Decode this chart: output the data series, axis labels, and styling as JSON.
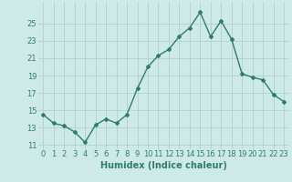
{
  "x": [
    0,
    1,
    2,
    3,
    4,
    5,
    6,
    7,
    8,
    9,
    10,
    11,
    12,
    13,
    14,
    15,
    16,
    17,
    18,
    19,
    20,
    21,
    22,
    23
  ],
  "y": [
    14.5,
    13.5,
    13.2,
    12.5,
    11.3,
    13.3,
    14.0,
    13.5,
    14.5,
    17.5,
    20.0,
    21.3,
    22.0,
    23.5,
    24.5,
    26.3,
    23.5,
    25.3,
    23.2,
    19.2,
    18.8,
    18.5,
    16.8,
    16.0
  ],
  "line_color": "#2e7d6e",
  "marker": "D",
  "marker_size": 2.0,
  "bg_color": "#ceeae8",
  "grid_color": "#b0cfcd",
  "tick_color": "#2e7d6e",
  "xlabel": "Humidex (Indice chaleur)",
  "xlabel_fontsize": 7,
  "yticks": [
    11,
    13,
    15,
    17,
    19,
    21,
    23,
    25
  ],
  "xticks": [
    0,
    1,
    2,
    3,
    4,
    5,
    6,
    7,
    8,
    9,
    10,
    11,
    12,
    13,
    14,
    15,
    16,
    17,
    18,
    19,
    20,
    21,
    22,
    23
  ],
  "ylim": [
    10.5,
    27.5
  ],
  "xlim": [
    -0.5,
    23.5
  ],
  "tick_fontsize": 6.0,
  "linewidth": 1.0
}
